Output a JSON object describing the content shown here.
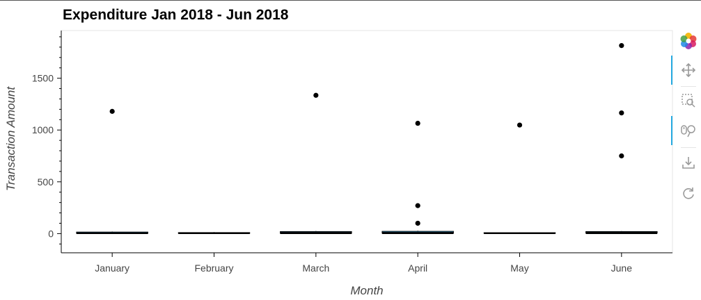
{
  "chart_data": {
    "type": "box",
    "title": "Expenditure Jan 2018 - Jun 2018",
    "xlabel": "Month",
    "ylabel": "Transaction Amount",
    "categories": [
      "January",
      "February",
      "March",
      "April",
      "May",
      "June"
    ],
    "ylim": [
      -185,
      1960
    ],
    "yticks": [
      0,
      500,
      1000,
      1500
    ],
    "ytick_labels": [
      "0",
      "500",
      "1000",
      "1500"
    ],
    "boxes": [
      {
        "category": "January",
        "q1": 2,
        "median": 6,
        "q3": 15,
        "lower": 0,
        "upper": 20
      },
      {
        "category": "February",
        "q1": 2,
        "median": 5,
        "q3": 10,
        "lower": 0,
        "upper": 14
      },
      {
        "category": "March",
        "q1": 3,
        "median": 10,
        "q3": 20,
        "lower": 0,
        "upper": 25
      },
      {
        "category": "April",
        "q1": 4,
        "median": 10,
        "q3": 22,
        "lower": 0,
        "upper": 28
      },
      {
        "category": "May",
        "q1": 2,
        "median": 5,
        "q3": 9,
        "lower": 0,
        "upper": 12
      },
      {
        "category": "June",
        "q1": 5,
        "median": 12,
        "q3": 20,
        "lower": 0,
        "upper": 24
      }
    ],
    "outliers": [
      {
        "category": "January",
        "value": 1180
      },
      {
        "category": "March",
        "value": 1335
      },
      {
        "category": "April",
        "value": 1065
      },
      {
        "category": "April",
        "value": 270
      },
      {
        "category": "April",
        "value": 100
      },
      {
        "category": "May",
        "value": 1048
      },
      {
        "category": "June",
        "value": 1815
      },
      {
        "category": "June",
        "value": 1165
      },
      {
        "category": "June",
        "value": 750
      }
    ],
    "grid": false,
    "colors": {
      "box_fill": "#30a2da",
      "box_line": "#000000",
      "outlier": "#000000",
      "axis": "#000000"
    }
  },
  "toolbar": {
    "tools": [
      {
        "name": "bokeh-logo-icon",
        "active": false
      },
      {
        "name": "pan-icon",
        "active": true
      },
      {
        "name": "box-zoom-icon",
        "active": false
      },
      {
        "name": "wheel-zoom-icon",
        "active": true
      },
      {
        "name": "save-icon",
        "active": false
      },
      {
        "name": "reset-icon",
        "active": false
      }
    ]
  }
}
